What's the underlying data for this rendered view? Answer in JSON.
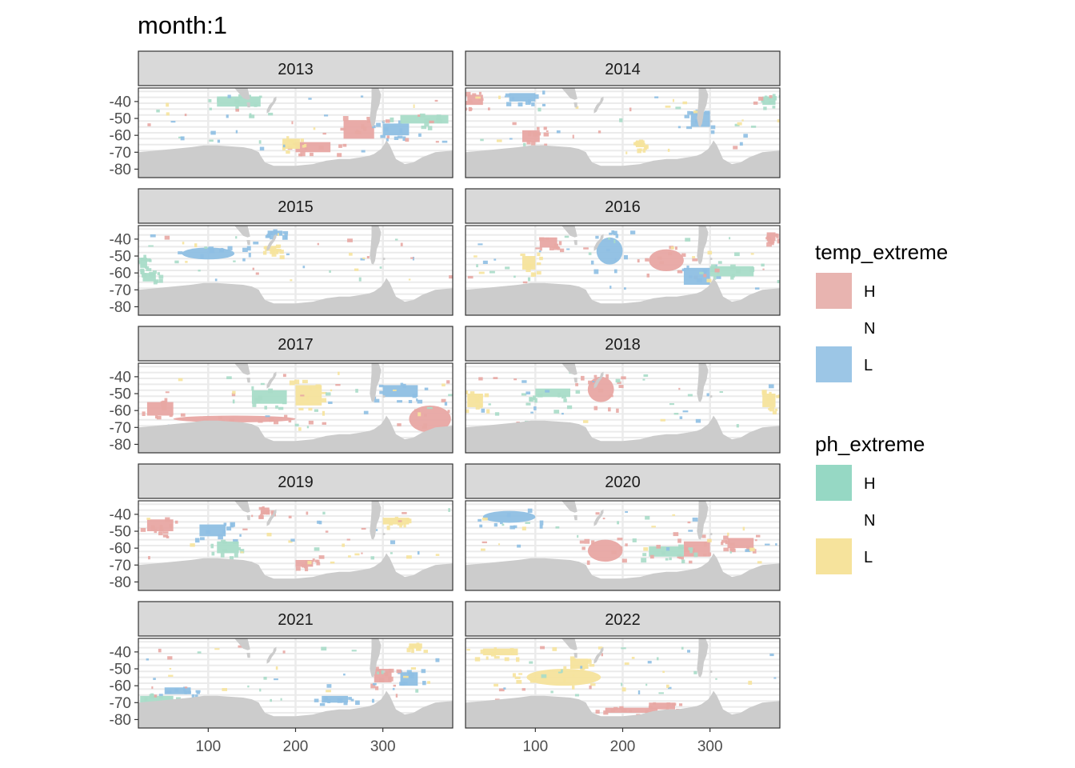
{
  "chart_data": {
    "type": "heatmap",
    "title": "month:1",
    "facet_var": "year",
    "facets": [
      "2013",
      "2014",
      "2015",
      "2016",
      "2017",
      "2018",
      "2019",
      "2020",
      "2021",
      "2022"
    ],
    "xlim": [
      20,
      380
    ],
    "ylim": [
      -85,
      -32
    ],
    "x_ticks": [
      100,
      200,
      300
    ],
    "y_ticks": [
      -40,
      -50,
      -60,
      -70,
      -80
    ],
    "y_tick_labels": [
      "-40",
      "-50",
      "-60",
      "-70",
      "-80"
    ],
    "grid": true,
    "legend_position": "right",
    "legends": [
      {
        "title": "temp_extreme",
        "items": [
          {
            "label": "H",
            "color": "#E8B4B0"
          },
          {
            "label": "N",
            "color": "none"
          },
          {
            "label": "L",
            "color": "#9CC6E6"
          }
        ]
      },
      {
        "title": "ph_extreme",
        "items": [
          {
            "label": "H",
            "color": "#96D8C4"
          },
          {
            "label": "N",
            "color": "none"
          },
          {
            "label": "L",
            "color": "#F6E39C"
          }
        ]
      }
    ],
    "colors": {
      "temp_H": "#E8A7A3",
      "temp_L": "#8EBFE3",
      "ph_H": "#A8DCC8",
      "ph_L": "#F6E39C",
      "land": "#CCCCCC",
      "strip": "#D9D9D9",
      "grid": "#EBEBEB"
    },
    "extreme_patches": {
      "2013": [
        {
          "var": "temp",
          "level": "H",
          "lon": [
            255,
            290
          ],
          "lat": [
            -62,
            -51
          ]
        },
        {
          "var": "temp",
          "level": "H",
          "lon": [
            200,
            240
          ],
          "lat": [
            -70,
            -64
          ]
        },
        {
          "var": "temp",
          "level": "L",
          "lon": [
            300,
            330
          ],
          "lat": [
            -60,
            -53
          ]
        },
        {
          "var": "ph",
          "level": "H",
          "lon": [
            110,
            160
          ],
          "lat": [
            -43,
            -37
          ]
        },
        {
          "var": "ph",
          "level": "H",
          "lon": [
            320,
            375
          ],
          "lat": [
            -53,
            -48
          ]
        },
        {
          "var": "ph",
          "level": "L",
          "lon": [
            185,
            205
          ],
          "lat": [
            -68,
            -62
          ]
        }
      ],
      "2014": [
        {
          "var": "temp",
          "level": "H",
          "lon": [
            22,
            40
          ],
          "lat": [
            -42,
            -36
          ]
        },
        {
          "var": "temp",
          "level": "H",
          "lon": [
            85,
            105
          ],
          "lat": [
            -64,
            -57
          ]
        },
        {
          "var": "temp",
          "level": "L",
          "lon": [
            278,
            300
          ],
          "lat": [
            -55,
            -46
          ]
        },
        {
          "var": "temp",
          "level": "L",
          "lon": [
            70,
            100
          ],
          "lat": [
            -40,
            -35
          ]
        },
        {
          "var": "ph",
          "level": "H",
          "lon": [
            360,
            375
          ],
          "lat": [
            -42,
            -37
          ]
        },
        {
          "var": "ph",
          "level": "L",
          "lon": [
            215,
            225
          ],
          "lat": [
            -67,
            -63
          ]
        }
      ],
      "2015": [
        {
          "var": "temp",
          "level": "L",
          "lon": [
            168,
            185
          ],
          "lat": [
            -38,
            -35
          ]
        },
        {
          "var": "temp",
          "level": "L",
          "lon": [
            70,
            130
          ],
          "lat": [
            -52,
            -45
          ]
        },
        {
          "var": "ph",
          "level": "H",
          "lon": [
            22,
            30
          ],
          "lat": [
            -57,
            -51
          ]
        },
        {
          "var": "ph",
          "level": "H",
          "lon": [
            25,
            40
          ],
          "lat": [
            -65,
            -60
          ]
        },
        {
          "var": "ph",
          "level": "L",
          "lon": [
            165,
            178
          ],
          "lat": [
            -47,
            -44
          ]
        }
      ],
      "2016": [
        {
          "var": "temp",
          "level": "H",
          "lon": [
            230,
            270
          ],
          "lat": [
            -59,
            -46
          ]
        },
        {
          "var": "temp",
          "level": "L",
          "lon": [
            170,
            200
          ],
          "lat": [
            -55,
            -39
          ]
        },
        {
          "var": "temp",
          "level": "L",
          "lon": [
            270,
            300
          ],
          "lat": [
            -67,
            -57
          ]
        },
        {
          "var": "temp",
          "level": "H",
          "lon": [
            105,
            125
          ],
          "lat": [
            -45,
            -39
          ]
        },
        {
          "var": "ph",
          "level": "H",
          "lon": [
            300,
            350
          ],
          "lat": [
            -62,
            -56
          ]
        },
        {
          "var": "ph",
          "level": "L",
          "lon": [
            85,
            100
          ],
          "lat": [
            -58,
            -50
          ]
        },
        {
          "var": "temp",
          "level": "H",
          "lon": [
            365,
            375
          ],
          "lat": [
            -41,
            -36
          ]
        }
      ],
      "2017": [
        {
          "var": "temp",
          "level": "H",
          "lon": [
            330,
            378
          ],
          "lat": [
            -73,
            -57
          ]
        },
        {
          "var": "temp",
          "level": "H",
          "lon": [
            30,
            60
          ],
          "lat": [
            -63,
            -55
          ]
        },
        {
          "var": "temp",
          "level": "H",
          "lon": [
            60,
            200
          ],
          "lat": [
            -67,
            -63
          ]
        },
        {
          "var": "ph",
          "level": "L",
          "lon": [
            200,
            230
          ],
          "lat": [
            -57,
            -45
          ]
        },
        {
          "var": "temp",
          "level": "L",
          "lon": [
            300,
            340
          ],
          "lat": [
            -52,
            -45
          ]
        },
        {
          "var": "ph",
          "level": "H",
          "lon": [
            150,
            190
          ],
          "lat": [
            -56,
            -48
          ]
        }
      ],
      "2018": [
        {
          "var": "temp",
          "level": "H",
          "lon": [
            160,
            190
          ],
          "lat": [
            -55,
            -40
          ]
        },
        {
          "var": "ph",
          "level": "L",
          "lon": [
            22,
            40
          ],
          "lat": [
            -58,
            -50
          ]
        },
        {
          "var": "ph",
          "level": "H",
          "lon": [
            100,
            140
          ],
          "lat": [
            -52,
            -47
          ]
        },
        {
          "var": "ph",
          "level": "L",
          "lon": [
            360,
            375
          ],
          "lat": [
            -58,
            -50
          ]
        }
      ],
      "2019": [
        {
          "var": "temp",
          "level": "H",
          "lon": [
            30,
            60
          ],
          "lat": [
            -50,
            -43
          ]
        },
        {
          "var": "temp",
          "level": "L",
          "lon": [
            90,
            120
          ],
          "lat": [
            -53,
            -46
          ]
        },
        {
          "var": "ph",
          "level": "H",
          "lon": [
            110,
            135
          ],
          "lat": [
            -63,
            -56
          ]
        },
        {
          "var": "ph",
          "level": "L",
          "lon": [
            300,
            330
          ],
          "lat": [
            -46,
            -42
          ]
        },
        {
          "var": "temp",
          "level": "H",
          "lon": [
            200,
            220
          ],
          "lat": [
            -71,
            -67
          ]
        },
        {
          "var": "temp",
          "level": "H",
          "lon": [
            160,
            170
          ],
          "lat": [
            -40,
            -36
          ]
        }
      ],
      "2020": [
        {
          "var": "temp",
          "level": "H",
          "lon": [
            160,
            200
          ],
          "lat": [
            -68,
            -55
          ]
        },
        {
          "var": "temp",
          "level": "H",
          "lon": [
            270,
            300
          ],
          "lat": [
            -65,
            -56
          ]
        },
        {
          "var": "temp",
          "level": "H",
          "lon": [
            320,
            350
          ],
          "lat": [
            -60,
            -54
          ]
        },
        {
          "var": "ph",
          "level": "H",
          "lon": [
            230,
            270
          ],
          "lat": [
            -65,
            -59
          ]
        },
        {
          "var": "temp",
          "level": "L",
          "lon": [
            40,
            100
          ],
          "lat": [
            -45,
            -38
          ]
        }
      ],
      "2021": [
        {
          "var": "temp",
          "level": "L",
          "lon": [
            320,
            340
          ],
          "lat": [
            -60,
            -52
          ]
        },
        {
          "var": "temp",
          "level": "L",
          "lon": [
            50,
            80
          ],
          "lat": [
            -65,
            -61
          ]
        },
        {
          "var": "temp",
          "level": "H",
          "lon": [
            290,
            310
          ],
          "lat": [
            -58,
            -50
          ]
        },
        {
          "var": "temp",
          "level": "L",
          "lon": [
            230,
            260
          ],
          "lat": [
            -70,
            -66
          ]
        },
        {
          "var": "ph",
          "level": "H",
          "lon": [
            22,
            60
          ],
          "lat": [
            -72,
            -66
          ]
        },
        {
          "var": "ph",
          "level": "L",
          "lon": [
            330,
            345
          ],
          "lat": [
            -38,
            -35
          ]
        }
      ],
      "2022": [
        {
          "var": "ph",
          "level": "L",
          "lon": [
            90,
            175
          ],
          "lat": [
            -60,
            -50
          ]
        },
        {
          "var": "ph",
          "level": "L",
          "lon": [
            140,
            160
          ],
          "lat": [
            -50,
            -44
          ]
        },
        {
          "var": "temp",
          "level": "H",
          "lon": [
            180,
            240
          ],
          "lat": [
            -76,
            -73
          ]
        },
        {
          "var": "ph",
          "level": "L",
          "lon": [
            40,
            80
          ],
          "lat": [
            -42,
            -38
          ]
        },
        {
          "var": "temp",
          "level": "H",
          "lon": [
            230,
            260
          ],
          "lat": [
            -74,
            -70
          ]
        }
      ]
    }
  }
}
